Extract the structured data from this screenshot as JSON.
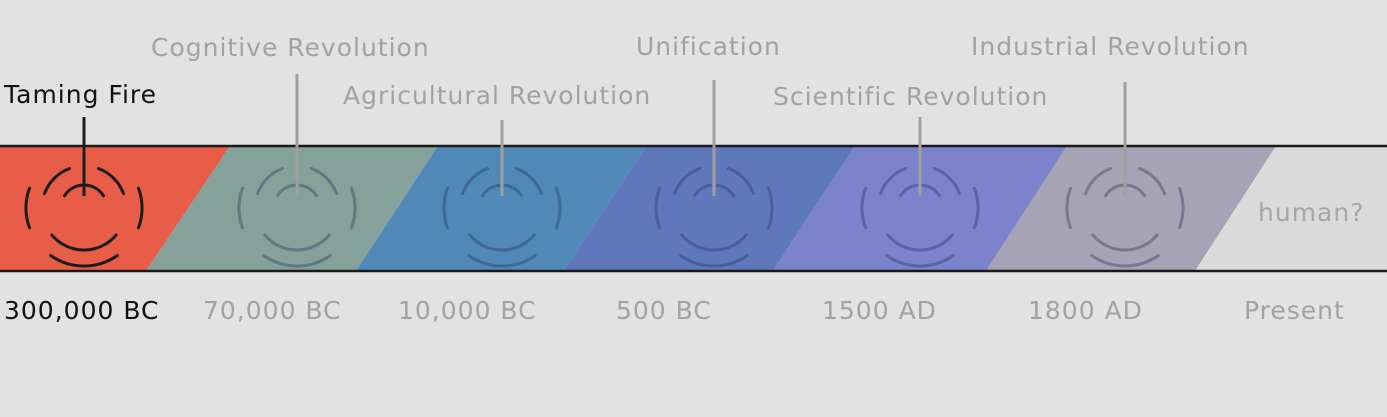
{
  "timeline": {
    "future_label": "human?",
    "eras": [
      {
        "event": "Taming Fire",
        "date": "300,000 BC",
        "color": "#e85d47",
        "active": true
      },
      {
        "event": "Cognitive Revolution",
        "date": "70,000 BC",
        "color": "#85a29a",
        "active": false
      },
      {
        "event": "Agricultural Revolution",
        "date": "10,000 BC",
        "color": "#5089b8",
        "active": false
      },
      {
        "event": "Unification",
        "date": "500 BC",
        "color": "#5f78bc",
        "active": false
      },
      {
        "event": "Scientific Revolution",
        "date": "1500 AD",
        "color": "#7a83cc",
        "active": false
      },
      {
        "event": "Industrial Revolution",
        "date": "1800 AD",
        "color": "#a5a3b5",
        "active": false
      },
      {
        "event": "",
        "date": "Present",
        "color": "#dadada",
        "active": false
      }
    ],
    "colors": {
      "band_border": "#1a1a1a",
      "active_icon": "#1c1c1c",
      "inactive_line": "#a0a0a0"
    }
  }
}
